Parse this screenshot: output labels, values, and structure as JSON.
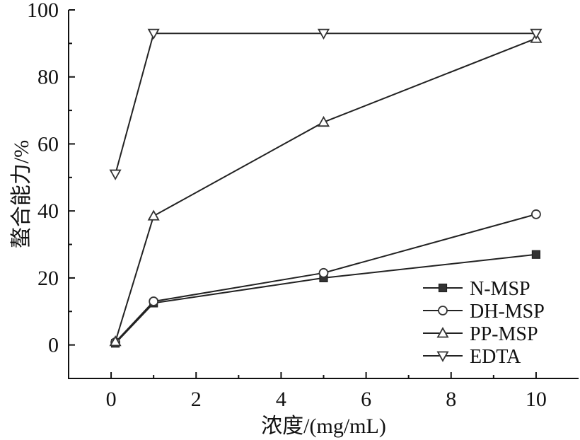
{
  "chart_data": {
    "type": "line",
    "xlabel": "浓度/(mg/mL)",
    "ylabel": "螯合能力/%",
    "xlim": [
      -1,
      11
    ],
    "ylim": [
      -10,
      100
    ],
    "x_ticks": [
      0,
      2,
      4,
      6,
      8,
      10
    ],
    "y_ticks": [
      0,
      20,
      40,
      60,
      80,
      100
    ],
    "grid": false,
    "legend_position": "bottom-right",
    "series": [
      {
        "name": "N-MSP",
        "marker": "filled-square",
        "x": [
          0.1,
          1,
          5,
          10
        ],
        "y": [
          0.5,
          12.5,
          20.0,
          27.0
        ]
      },
      {
        "name": "DH-MSP",
        "marker": "open-circle",
        "x": [
          0.1,
          1,
          5,
          10
        ],
        "y": [
          0.8,
          13.0,
          21.5,
          39.0
        ]
      },
      {
        "name": "PP-MSP",
        "marker": "open-triangle-up",
        "x": [
          0.1,
          1,
          5,
          10
        ],
        "y": [
          1.0,
          38.5,
          66.5,
          91.5
        ]
      },
      {
        "name": "EDTA",
        "marker": "open-triangle-down",
        "x": [
          0.1,
          1,
          5,
          10
        ],
        "y": [
          51.0,
          93.0,
          93.0,
          93.0
        ]
      }
    ]
  }
}
